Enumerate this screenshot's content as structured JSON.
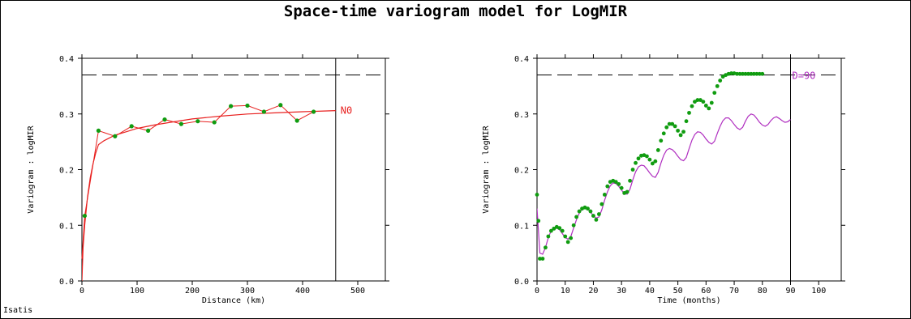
{
  "title": "Space-time variogram model for LogMIR",
  "footer": "Isatis",
  "colors": {
    "model_red": "#e8201f",
    "model_purple": "#b02fc0",
    "points_green": "#109c10",
    "axis": "#000000"
  },
  "chart_data": [
    {
      "type": "line",
      "title": "",
      "xlabel": "Distance (km)",
      "ylabel": "Variogram : logMIR",
      "xlim": [
        0,
        550
      ],
      "ylim": [
        0,
        0.4
      ],
      "xticks": [
        "0",
        "100",
        "200",
        "300",
        "400",
        "500"
      ],
      "yticks": [
        "0.0",
        "0.1",
        "0.2",
        "0.3",
        "0.4"
      ],
      "sill": 0.37,
      "cutoff_x": 460,
      "direction_label": "N0",
      "series": [
        {
          "role": "experimental",
          "x": [
            0,
            5,
            30,
            60,
            90,
            120,
            150,
            180,
            210,
            240,
            270,
            300,
            330,
            360,
            390,
            420
          ],
          "y": [
            0.04,
            0.117,
            0.27,
            0.26,
            0.278,
            0.27,
            0.29,
            0.282,
            0.287,
            0.285,
            0.314,
            0.315,
            0.304,
            0.316,
            0.288,
            0.304
          ]
        },
        {
          "role": "model",
          "x": [
            0,
            2,
            5,
            10,
            15,
            20,
            25,
            30,
            40,
            50,
            60,
            80,
            100,
            130,
            160,
            200,
            250,
            300,
            350,
            400,
            460
          ],
          "y": [
            0.0,
            0.06,
            0.1,
            0.15,
            0.185,
            0.21,
            0.23,
            0.245,
            0.252,
            0.257,
            0.262,
            0.268,
            0.274,
            0.28,
            0.285,
            0.291,
            0.296,
            0.3,
            0.302,
            0.304,
            0.306
          ]
        }
      ]
    },
    {
      "type": "line",
      "title": "",
      "xlabel": "Time (months)",
      "ylabel": "Variogram : logMIR",
      "xlim": [
        0,
        108
      ],
      "ylim": [
        0,
        0.4
      ],
      "xticks": [
        "0",
        "10",
        "20",
        "30",
        "40",
        "50",
        "60",
        "70",
        "80",
        "90",
        "100"
      ],
      "yticks": [
        "0.0",
        "0.1",
        "0.2",
        "0.3",
        "0.4"
      ],
      "sill": 0.37,
      "cutoff_x": 90,
      "direction_label": "D=90",
      "series": [
        {
          "role": "experimental",
          "x": [
            0,
            0.5,
            1,
            2,
            3,
            4,
            5,
            6,
            7,
            8,
            9,
            10,
            11,
            12,
            13,
            14,
            15,
            16,
            17,
            18,
            19,
            20,
            21,
            22,
            23,
            24,
            25,
            26,
            27,
            28,
            29,
            30,
            31,
            32,
            33,
            34,
            35,
            36,
            37,
            38,
            39,
            40,
            41,
            42,
            43,
            44,
            45,
            46,
            47,
            48,
            49,
            50,
            51,
            52,
            53,
            54,
            55,
            56,
            57,
            58,
            59,
            60,
            61,
            62,
            63,
            64,
            65,
            66,
            67,
            68,
            69,
            70,
            71,
            72,
            73,
            74,
            75,
            76,
            77,
            78,
            79,
            80
          ],
          "y": [
            0.155,
            0.108,
            0.04,
            0.04,
            0.06,
            0.08,
            0.09,
            0.094,
            0.097,
            0.095,
            0.09,
            0.08,
            0.07,
            0.077,
            0.1,
            0.115,
            0.125,
            0.13,
            0.132,
            0.13,
            0.125,
            0.117,
            0.11,
            0.12,
            0.138,
            0.155,
            0.17,
            0.178,
            0.18,
            0.178,
            0.174,
            0.167,
            0.158,
            0.16,
            0.18,
            0.2,
            0.212,
            0.22,
            0.225,
            0.226,
            0.224,
            0.218,
            0.211,
            0.215,
            0.235,
            0.252,
            0.265,
            0.276,
            0.282,
            0.282,
            0.278,
            0.27,
            0.262,
            0.268,
            0.287,
            0.302,
            0.314,
            0.322,
            0.325,
            0.325,
            0.322,
            0.315,
            0.31,
            0.32,
            0.338,
            0.35,
            0.36,
            0.367,
            0.37,
            0.372,
            0.373,
            0.373,
            0.372,
            0.372,
            0.372,
            0.372,
            0.372,
            0.372,
            0.372,
            0.372,
            0.372,
            0.372
          ]
        },
        {
          "role": "model",
          "note": "oscillating space-time model, ends near 0.29 at 90 months",
          "x": [
            0,
            1,
            2,
            3,
            4,
            5,
            6,
            7,
            8,
            9,
            10,
            11,
            12,
            13,
            14,
            15,
            16,
            17,
            18,
            19,
            20,
            21,
            22,
            23,
            24,
            25,
            26,
            27,
            28,
            29,
            30,
            31,
            32,
            33,
            34,
            35,
            36,
            37,
            38,
            39,
            40,
            41,
            42,
            43,
            44,
            45,
            46,
            47,
            48,
            49,
            50,
            51,
            52,
            53,
            54,
            55,
            56,
            57,
            58,
            59,
            60,
            61,
            62,
            63,
            64,
            65,
            66,
            67,
            68,
            69,
            70,
            71,
            72,
            73,
            74,
            75,
            76,
            77,
            78,
            79,
            80,
            81,
            82,
            83,
            84,
            85,
            86,
            87,
            88,
            89,
            90
          ],
          "y": [
            0.13,
            0.05,
            0.048,
            0.06,
            0.078,
            0.09,
            0.095,
            0.095,
            0.092,
            0.085,
            0.078,
            0.075,
            0.08,
            0.095,
            0.11,
            0.122,
            0.129,
            0.131,
            0.129,
            0.124,
            0.117,
            0.113,
            0.115,
            0.128,
            0.145,
            0.16,
            0.171,
            0.176,
            0.175,
            0.17,
            0.163,
            0.157,
            0.156,
            0.165,
            0.182,
            0.196,
            0.205,
            0.208,
            0.207,
            0.201,
            0.194,
            0.188,
            0.186,
            0.195,
            0.212,
            0.226,
            0.235,
            0.238,
            0.236,
            0.231,
            0.224,
            0.218,
            0.216,
            0.222,
            0.238,
            0.253,
            0.263,
            0.268,
            0.267,
            0.262,
            0.255,
            0.249,
            0.246,
            0.251,
            0.265,
            0.278,
            0.288,
            0.293,
            0.293,
            0.288,
            0.281,
            0.275,
            0.272,
            0.276,
            0.287,
            0.296,
            0.3,
            0.298,
            0.292,
            0.285,
            0.28,
            0.278,
            0.281,
            0.288,
            0.293,
            0.295,
            0.292,
            0.288,
            0.285,
            0.286,
            0.29
          ]
        }
      ]
    }
  ]
}
